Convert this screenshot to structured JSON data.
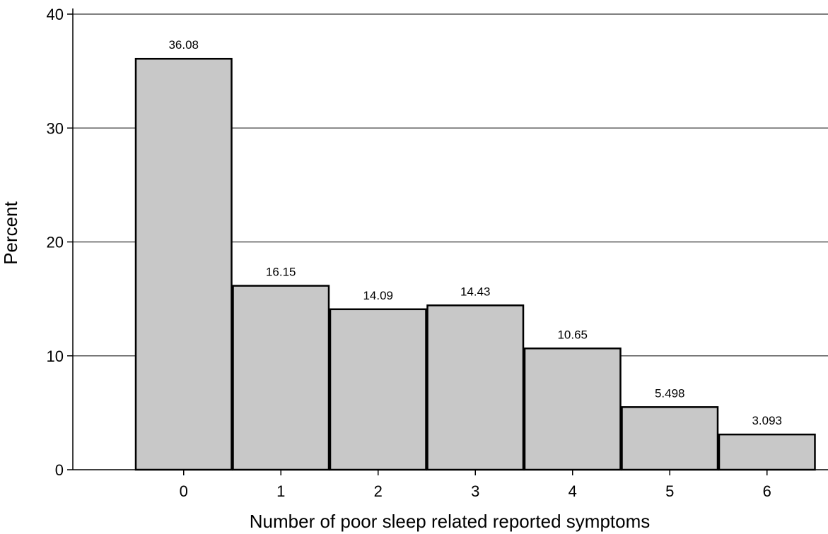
{
  "chart_data": {
    "type": "bar",
    "categories": [
      "0",
      "1",
      "2",
      "3",
      "4",
      "5",
      "6"
    ],
    "values": [
      36.08,
      16.15,
      14.09,
      14.43,
      10.65,
      5.498,
      3.093
    ],
    "value_labels": [
      "36.08",
      "16.15",
      "14.09",
      "14.43",
      "10.65",
      "5.498",
      "3.093"
    ],
    "xlabel": "Number of poor sleep related reported symptoms",
    "ylabel": "Percent",
    "ylim": [
      0,
      40
    ],
    "yticks": [
      0,
      10,
      20,
      30,
      40
    ],
    "grid": "horizontal",
    "bar_color": "#c8c8c8",
    "bar_edge_color": "#000000",
    "gridline_color": "#555555"
  }
}
